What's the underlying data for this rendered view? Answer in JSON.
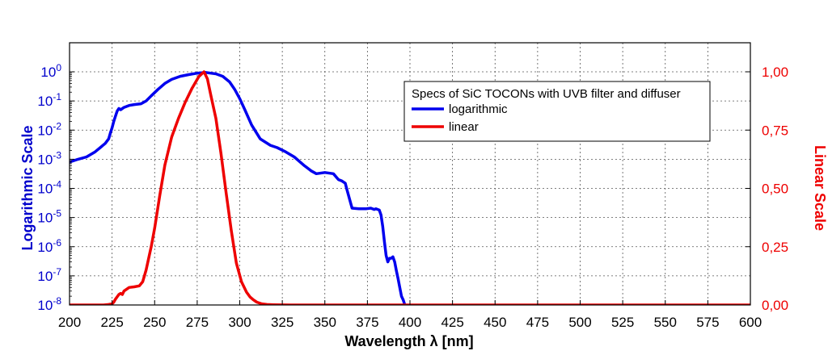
{
  "chart_data": {
    "type": "line",
    "xlabel": "Wavelength λ [nm]",
    "ylabel_left": "Logarithmic Scale",
    "ylabel_right": "Linear Scale",
    "xlim": [
      200,
      600
    ],
    "ylim_left": [
      1e-08,
      1
    ],
    "ylim_right": [
      0,
      1
    ],
    "y_left_scale": "log",
    "y_right_scale": "linear",
    "grid": true,
    "legend_title": "Specs of SiC TOCONs with UVB filter and diffuser",
    "legend_position": "top-right",
    "x_ticks": [
      "200",
      "225",
      "250",
      "275",
      "300",
      "325",
      "350",
      "375",
      "400",
      "425",
      "450",
      "475",
      "500",
      "525",
      "550",
      "575",
      "600"
    ],
    "y_left_ticks": [
      {
        "base": "10",
        "exp": "0"
      },
      {
        "base": "10",
        "exp": "-1"
      },
      {
        "base": "10",
        "exp": "-2"
      },
      {
        "base": "10",
        "exp": "-3"
      },
      {
        "base": "10",
        "exp": "-4"
      },
      {
        "base": "10",
        "exp": "-5"
      },
      {
        "base": "10",
        "exp": "-6"
      },
      {
        "base": "10",
        "exp": "-7"
      },
      {
        "base": "10",
        "exp": "-8"
      }
    ],
    "y_right_ticks": [
      "1,00",
      "0,75",
      "0,50",
      "0,25",
      "0,00"
    ],
    "colors": {
      "logarithmic": "#0000ee",
      "linear": "#ee0000",
      "left_axis": "#0000cc",
      "right_axis": "#ee0000"
    },
    "series": [
      {
        "name": "logarithmic",
        "axis": "left",
        "color": "#0000ee",
        "x": [
          200,
          205,
          210,
          215,
          218,
          221,
          223,
          224,
          225,
          226,
          227,
          228,
          229,
          230,
          232,
          235,
          238,
          242,
          245,
          248,
          252,
          256,
          260,
          265,
          270,
          275,
          280,
          283,
          286,
          290,
          294,
          297,
          300,
          303,
          307,
          312,
          318,
          322,
          327,
          332,
          338,
          342,
          345,
          350,
          355,
          358,
          360,
          362,
          363,
          366,
          370,
          374,
          377,
          379,
          380,
          382,
          383,
          384,
          385,
          386,
          387,
          388,
          389,
          390,
          391,
          392,
          393,
          394,
          395,
          396,
          397,
          398
        ],
        "y": [
          0.0008,
          0.001,
          0.0012,
          0.0018,
          0.0025,
          0.0035,
          0.005,
          0.008,
          0.012,
          0.02,
          0.03,
          0.045,
          0.055,
          0.05,
          0.06,
          0.07,
          0.075,
          0.08,
          0.1,
          0.15,
          0.25,
          0.4,
          0.55,
          0.7,
          0.8,
          0.9,
          0.95,
          0.9,
          0.85,
          0.7,
          0.45,
          0.25,
          0.12,
          0.05,
          0.015,
          0.005,
          0.003,
          0.0025,
          0.0018,
          0.0012,
          0.0006,
          0.0004,
          0.00032,
          0.00035,
          0.00032,
          0.0002,
          0.00018,
          0.00015,
          9e-05,
          2.1e-05,
          2e-05,
          2e-05,
          2.1e-05,
          1.9e-05,
          2e-05,
          1.8e-05,
          1.23e-05,
          5e-06,
          1.5e-06,
          5e-07,
          3e-07,
          4e-07,
          4e-07,
          4.5e-07,
          3e-07,
          1.5e-07,
          8e-08,
          4e-08,
          2e-08,
          1.5e-08,
          1e-08,
          5e-09
        ]
      },
      {
        "name": "linear",
        "axis": "right",
        "color": "#ee0000",
        "x": [
          200,
          210,
          220,
          223,
          225,
          226,
          227,
          228,
          229,
          230,
          231,
          232,
          235,
          238,
          241,
          243,
          245,
          248,
          250,
          253,
          256,
          260,
          264,
          268,
          272,
          276,
          279,
          281,
          283,
          286,
          289,
          292,
          295,
          298,
          301,
          304,
          306,
          308,
          310,
          313,
          316,
          320,
          330,
          400,
          600
        ],
        "y": [
          0.0,
          0.0,
          0.0,
          0.002,
          0.005,
          0.012,
          0.025,
          0.035,
          0.045,
          0.05,
          0.045,
          0.06,
          0.075,
          0.078,
          0.082,
          0.1,
          0.15,
          0.25,
          0.33,
          0.47,
          0.6,
          0.72,
          0.8,
          0.87,
          0.93,
          0.98,
          1.0,
          0.97,
          0.9,
          0.8,
          0.65,
          0.48,
          0.32,
          0.18,
          0.1,
          0.055,
          0.035,
          0.022,
          0.012,
          0.005,
          0.002,
          0.001,
          0.0,
          0.0,
          0.0
        ]
      }
    ]
  }
}
